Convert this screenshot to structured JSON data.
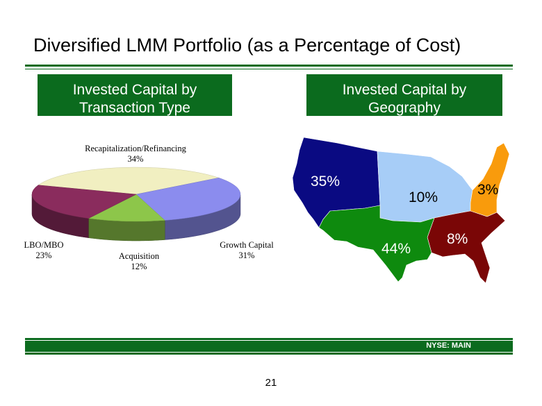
{
  "title": "Diversified LMM Portfolio (as a Percentage of Cost)",
  "left_header": [
    "Invested Capital by",
    "Transaction Type"
  ],
  "right_header": [
    "Invested Capital by",
    "Geography"
  ],
  "footer": {
    "ticker": "NYSE:  MAIN",
    "page": "21"
  },
  "colors": {
    "accent": "#0b6b1e"
  },
  "chart_data": [
    {
      "type": "pie",
      "slices": [
        {
          "label": "Recapitalization/Refinancing",
          "value": 34,
          "display": "34%",
          "color": "#f1efc1"
        },
        {
          "label": "Growth Capital",
          "value": 31,
          "display": "31%",
          "color": "#8b8cee"
        },
        {
          "label": "Acquisition",
          "value": 12,
          "display": "12%",
          "color": "#8dc64a"
        },
        {
          "label": "LBO/MBO",
          "value": 23,
          "display": "23%",
          "color": "#8a2c5d"
        }
      ]
    },
    {
      "type": "map",
      "regions": [
        {
          "name": "West",
          "value": 35,
          "display": "35%",
          "color": "#0a0a82"
        },
        {
          "name": "Midwest",
          "value": 10,
          "display": "10%",
          "color": "#a7cdf7"
        },
        {
          "name": "Northeast",
          "value": 3,
          "display": "3%",
          "color": "#f99b0c"
        },
        {
          "name": "Southeast",
          "value": 8,
          "display": "8%",
          "color": "#7a0606"
        },
        {
          "name": "South Central",
          "value": 44,
          "display": "44%",
          "color": "#0e8a0e"
        }
      ]
    }
  ]
}
